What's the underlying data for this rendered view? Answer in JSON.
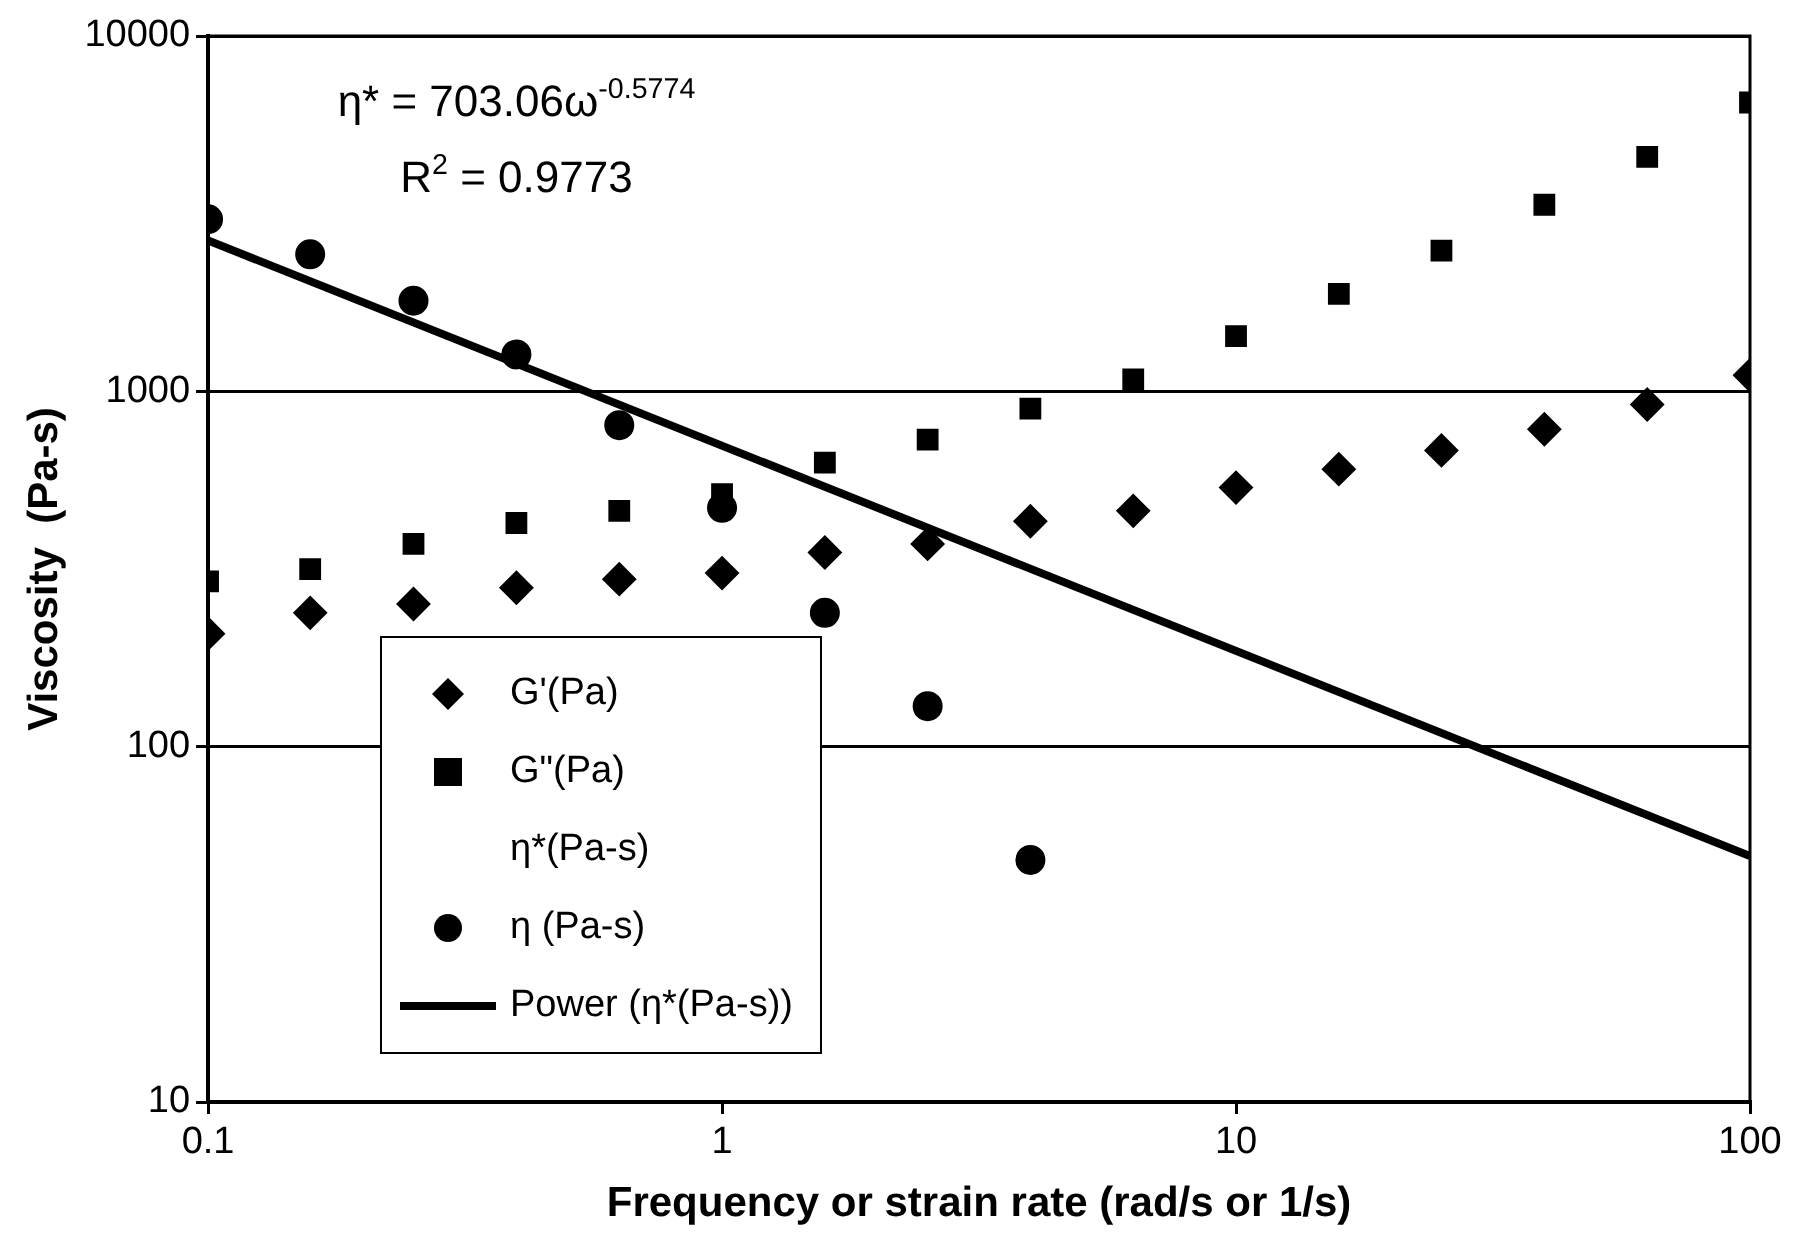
{
  "chart_data": {
    "type": "scatter",
    "xlabel": "Frequency or strain rate (rad/s or 1/s)",
    "ylabel": "Viscosity  (Pa-s)",
    "log": "xy",
    "xlim": [
      0.1,
      100
    ],
    "xticks": [
      0.1,
      1,
      10,
      100
    ],
    "ylim": [
      10,
      10000
    ],
    "yticks": [
      10,
      100,
      1000,
      10000
    ],
    "grid": "y",
    "legend": "bottom left",
    "x": [
      0.1,
      0.158,
      0.251,
      0.398,
      0.631,
      1,
      1.585,
      2.512,
      3.98,
      6.31,
      10,
      15.85,
      25.1,
      39.8,
      63.1,
      100
    ],
    "series": [
      {
        "name": "G'(Pa)",
        "color": "#000000",
        "marker": "diamond",
        "values": [
          208,
          238,
          252,
          280,
          296,
          308,
          352,
          372,
          431,
          461,
          536,
          604,
          682,
          782,
          918,
          1110
        ]
      },
      {
        "name": "G\"(Pa)",
        "color": "#000000",
        "marker": "square",
        "values": [
          292,
          316,
          372,
          426,
          461,
          514,
          630,
          731,
          894,
          1080,
          1430,
          1880,
          2490,
          3350,
          4570,
          6500
        ]
      },
      {
        "name": "η*(Pa-s)",
        "color": "#000000",
        "marker": "none",
        "values": [
          null,
          null,
          null,
          null,
          null,
          null,
          null,
          null,
          null,
          null,
          null,
          null,
          null,
          null,
          null,
          null
        ]
      },
      {
        "name": "η (Pa-s)",
        "color": "#000000",
        "marker": "circle",
        "values": [
          3050,
          2430,
          1800,
          1270,
          803,
          470,
          238,
          130,
          48,
          null,
          null,
          null,
          null,
          null,
          null,
          null
        ]
      },
      {
        "name": "Power (η*(Pa-s))",
        "color": "#000000",
        "type": "line",
        "marker": "none",
        "line_style": "solid",
        "x": [
          0.1,
          100
        ],
        "values": [
          2658,
          49.2
        ]
      }
    ],
    "annotations": [
      "η* = 703.06ω$^{-0.5774}$",
      "R$^{2}$ = 0.9773"
    ]
  }
}
